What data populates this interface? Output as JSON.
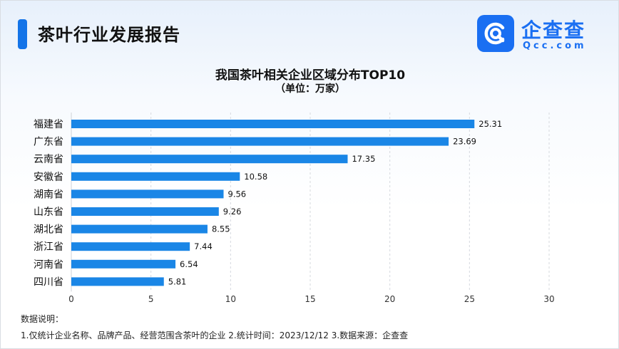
{
  "header": {
    "title": "茶叶行业发展报告"
  },
  "logo": {
    "name": "企查查",
    "domain": "Qcc.com",
    "icon": "qcc-magnifier-icon"
  },
  "chart_data": {
    "type": "bar",
    "orientation": "horizontal",
    "title": "我国茶叶相关企业区域分布TOP10",
    "subtitle": "（单位：万家）",
    "categories": [
      "福建省",
      "广东省",
      "云南省",
      "安徽省",
      "湖南省",
      "山东省",
      "湖北省",
      "浙江省",
      "河南省",
      "四川省"
    ],
    "values": [
      25.31,
      23.69,
      17.35,
      10.58,
      9.56,
      9.26,
      8.55,
      7.44,
      6.54,
      5.81
    ],
    "value_labels": [
      "25.31",
      "23.69",
      "17.35",
      "10.58",
      "9.56",
      "9.26",
      "8.55",
      "7.44",
      "6.54",
      "5.81"
    ],
    "xticks": [
      "0",
      "5",
      "10",
      "15",
      "20",
      "25",
      "30"
    ],
    "xlim": [
      0,
      30
    ],
    "xlabel": "",
    "ylabel": "",
    "grid": "vertical dashed",
    "bar_color": "#1a86e6"
  },
  "notes": {
    "heading": "数据说明：",
    "text": "1.仅统计企业名称、品牌产品、经营范围含茶叶的企业  2.统计时间：2023/12/12  3.数据来源：企查查"
  }
}
